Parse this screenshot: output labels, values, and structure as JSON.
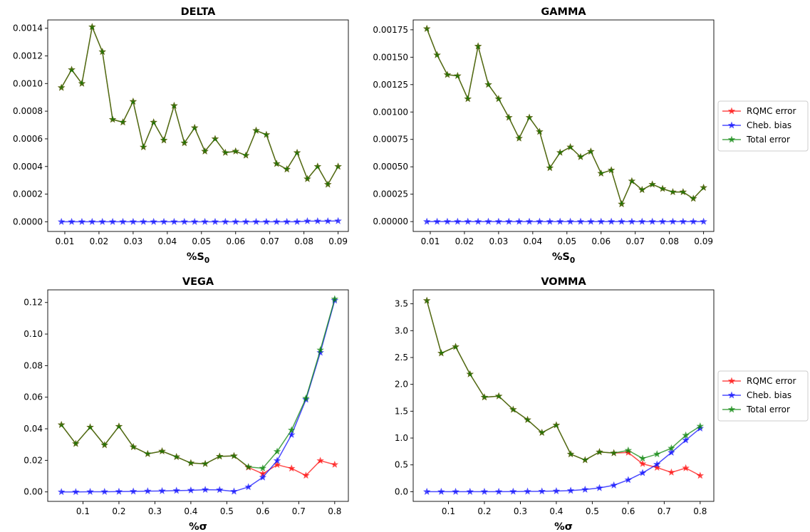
{
  "colors": {
    "rqmc": "#ff0000",
    "cheb": "#0000ff",
    "total": "#008000"
  },
  "legend_labels": [
    "RQMC error",
    "Cheb. bias",
    "Total error"
  ],
  "chart_data": [
    {
      "type": "line",
      "title": "DELTA",
      "xlabel": "%S",
      "xlabel_sub": "0",
      "xlim": [
        0.005,
        0.093
      ],
      "ylim": [
        -7e-05,
        0.00146
      ],
      "xticks": [
        0.01,
        0.02,
        0.03,
        0.04,
        0.05,
        0.06,
        0.07,
        0.08,
        0.09
      ],
      "xtick_labels": [
        "0.01",
        "0.02",
        "0.03",
        "0.04",
        "0.05",
        "0.06",
        "0.07",
        "0.08",
        "0.09"
      ],
      "yticks": [
        0,
        0.0002,
        0.0004,
        0.0006,
        0.0008,
        0.001,
        0.0012,
        0.0014
      ],
      "ytick_labels": [
        "0.0000",
        "0.0002",
        "0.0004",
        "0.0006",
        "0.0008",
        "0.0010",
        "0.0012",
        "0.0014"
      ],
      "legend": "none",
      "x": [
        0.009,
        0.012,
        0.015,
        0.018,
        0.021,
        0.024,
        0.027,
        0.03,
        0.033,
        0.036,
        0.039,
        0.042,
        0.045,
        0.048,
        0.051,
        0.054,
        0.057,
        0.06,
        0.063,
        0.066,
        0.069,
        0.072,
        0.075,
        0.078,
        0.081,
        0.084,
        0.087,
        0.09
      ],
      "series": [
        {
          "name": "RQMC error",
          "color_key": "rqmc",
          "values": [
            0.00097,
            0.0011,
            0.001,
            0.00141,
            0.00123,
            0.00074,
            0.00072,
            0.00087,
            0.00054,
            0.00072,
            0.00059,
            0.00084,
            0.00057,
            0.00068,
            0.00051,
            0.0006,
            0.0005,
            0.00051,
            0.00048,
            0.00066,
            0.00063,
            0.00042,
            0.00038,
            0.0005,
            0.00031,
            0.0004,
            0.00027,
            0.0004
          ]
        },
        {
          "name": "Cheb. bias",
          "color_key": "cheb",
          "values": [
            0,
            0,
            0,
            0,
            0,
            0,
            0,
            0,
            0,
            0,
            0,
            0,
            0,
            0,
            0,
            0,
            0,
            0,
            0,
            0,
            0,
            0,
            0,
            0,
            5e-06,
            5e-06,
            5e-06,
            6e-06
          ]
        },
        {
          "name": "Total error",
          "color_key": "total",
          "values": [
            0.00097,
            0.0011,
            0.001,
            0.00141,
            0.00123,
            0.00074,
            0.00072,
            0.00087,
            0.00054,
            0.00072,
            0.00059,
            0.00084,
            0.00057,
            0.00068,
            0.00051,
            0.0006,
            0.0005,
            0.00051,
            0.00048,
            0.00066,
            0.00063,
            0.00042,
            0.00038,
            0.0005,
            0.00031,
            0.0004,
            0.00027,
            0.0004
          ]
        }
      ]
    },
    {
      "type": "line",
      "title": "GAMMA",
      "xlabel": "%S",
      "xlabel_sub": "0",
      "xlim": [
        0.005,
        0.093
      ],
      "ylim": [
        -9e-05,
        0.00184
      ],
      "xticks": [
        0.01,
        0.02,
        0.03,
        0.04,
        0.05,
        0.06,
        0.07,
        0.08,
        0.09
      ],
      "xtick_labels": [
        "0.01",
        "0.02",
        "0.03",
        "0.04",
        "0.05",
        "0.06",
        "0.07",
        "0.08",
        "0.09"
      ],
      "yticks": [
        0,
        0.00025,
        0.0005,
        0.00075,
        0.001,
        0.00125,
        0.0015,
        0.00175
      ],
      "ytick_labels": [
        "0.00000",
        "0.00025",
        "0.00050",
        "0.00075",
        "0.00100",
        "0.00125",
        "0.00150",
        "0.00175"
      ],
      "legend": "right",
      "x": [
        0.009,
        0.012,
        0.015,
        0.018,
        0.021,
        0.024,
        0.027,
        0.03,
        0.033,
        0.036,
        0.039,
        0.042,
        0.045,
        0.048,
        0.051,
        0.054,
        0.057,
        0.06,
        0.063,
        0.066,
        0.069,
        0.072,
        0.075,
        0.078,
        0.081,
        0.084,
        0.087,
        0.09
      ],
      "series": [
        {
          "name": "RQMC error",
          "color_key": "rqmc",
          "values": [
            0.00176,
            0.00152,
            0.00134,
            0.00133,
            0.00112,
            0.0016,
            0.00125,
            0.00112,
            0.00095,
            0.00076,
            0.00095,
            0.00082,
            0.00049,
            0.00063,
            0.00068,
            0.00059,
            0.00064,
            0.00044,
            0.00047,
            0.00016,
            0.00037,
            0.00029,
            0.00034,
            0.0003,
            0.00027,
            0.00027,
            0.00021,
            0.00031
          ]
        },
        {
          "name": "Cheb. bias",
          "color_key": "cheb",
          "values": [
            0,
            0,
            0,
            0,
            0,
            0,
            0,
            0,
            0,
            0,
            0,
            0,
            0,
            0,
            0,
            0,
            0,
            0,
            0,
            0,
            0,
            0,
            0,
            0,
            0,
            0,
            0,
            0
          ]
        },
        {
          "name": "Total error",
          "color_key": "total",
          "values": [
            0.00176,
            0.00152,
            0.00134,
            0.00133,
            0.00112,
            0.0016,
            0.00125,
            0.00112,
            0.00095,
            0.00076,
            0.00095,
            0.00082,
            0.00049,
            0.00063,
            0.00068,
            0.00059,
            0.00064,
            0.00044,
            0.00047,
            0.00016,
            0.00037,
            0.00029,
            0.00034,
            0.0003,
            0.00027,
            0.00027,
            0.00021,
            0.00031
          ]
        }
      ]
    },
    {
      "type": "line",
      "title": "VEGA",
      "xlabel": "%σ",
      "xlabel_sub": "",
      "xlim": [
        0.002,
        0.838
      ],
      "ylim": [
        -0.006,
        0.128
      ],
      "xticks": [
        0.1,
        0.2,
        0.3,
        0.4,
        0.5,
        0.6,
        0.7,
        0.8
      ],
      "xtick_labels": [
        "0.1",
        "0.2",
        "0.3",
        "0.4",
        "0.5",
        "0.6",
        "0.7",
        "0.8"
      ],
      "yticks": [
        0,
        0.02,
        0.04,
        0.06,
        0.08,
        0.1,
        0.12
      ],
      "ytick_labels": [
        "0.00",
        "0.02",
        "0.04",
        "0.06",
        "0.08",
        "0.10",
        "0.12"
      ],
      "legend": "none",
      "x": [
        0.04,
        0.08,
        0.12,
        0.16,
        0.2,
        0.24,
        0.28,
        0.32,
        0.36,
        0.4,
        0.44,
        0.48,
        0.52,
        0.56,
        0.6,
        0.64,
        0.68,
        0.72,
        0.76,
        0.8
      ],
      "series": [
        {
          "name": "RQMC error",
          "color_key": "rqmc",
          "values": [
            0.0425,
            0.0305,
            0.041,
            0.0297,
            0.0415,
            0.0285,
            0.0241,
            0.0258,
            0.0222,
            0.0183,
            0.0178,
            0.0225,
            0.0228,
            0.0155,
            0.0115,
            0.0172,
            0.0149,
            0.0104,
            0.0198,
            0.0173
          ]
        },
        {
          "name": "Cheb. bias",
          "color_key": "cheb",
          "values": [
            0,
            0,
            0.0001,
            0.0001,
            0.0002,
            0.0003,
            0.0005,
            0.0006,
            0.0008,
            0.001,
            0.0014,
            0.0013,
            0.0003,
            0.0031,
            0.0092,
            0.0198,
            0.0362,
            0.0585,
            0.0883,
            0.1213
          ]
        },
        {
          "name": "Total error",
          "color_key": "total",
          "values": [
            0.0425,
            0.0305,
            0.041,
            0.0297,
            0.0415,
            0.0285,
            0.0241,
            0.0258,
            0.0222,
            0.0183,
            0.0178,
            0.0225,
            0.0228,
            0.0158,
            0.015,
            0.0256,
            0.0392,
            0.0593,
            0.0899,
            0.1222
          ]
        }
      ]
    },
    {
      "type": "line",
      "title": "VOMMA",
      "xlabel": "%σ",
      "xlabel_sub": "",
      "xlim": [
        0.002,
        0.838
      ],
      "ylim": [
        -0.18,
        3.76
      ],
      "xticks": [
        0.1,
        0.2,
        0.3,
        0.4,
        0.5,
        0.6,
        0.7,
        0.8
      ],
      "xtick_labels": [
        "0.1",
        "0.2",
        "0.3",
        "0.4",
        "0.5",
        "0.6",
        "0.7",
        "0.8"
      ],
      "yticks": [
        0,
        0.5,
        1.0,
        1.5,
        2.0,
        2.5,
        3.0,
        3.5
      ],
      "ytick_labels": [
        "0.0",
        "0.5",
        "1.0",
        "1.5",
        "2.0",
        "2.5",
        "3.0",
        "3.5"
      ],
      "legend": "right",
      "x": [
        0.04,
        0.08,
        0.12,
        0.16,
        0.2,
        0.24,
        0.28,
        0.32,
        0.36,
        0.4,
        0.44,
        0.48,
        0.52,
        0.56,
        0.6,
        0.64,
        0.68,
        0.72,
        0.76,
        0.8
      ],
      "series": [
        {
          "name": "RQMC error",
          "color_key": "rqmc",
          "values": [
            3.56,
            2.58,
            2.7,
            2.19,
            1.76,
            1.78,
            1.53,
            1.34,
            1.1,
            1.24,
            0.7,
            0.59,
            0.74,
            0.72,
            0.73,
            0.52,
            0.45,
            0.36,
            0.44,
            0.3
          ]
        },
        {
          "name": "Cheb. bias",
          "color_key": "cheb",
          "values": [
            0,
            0,
            0,
            0,
            0,
            0,
            0.003,
            0.005,
            0.008,
            0.012,
            0.02,
            0.04,
            0.07,
            0.12,
            0.22,
            0.35,
            0.51,
            0.73,
            0.96,
            1.18
          ]
        },
        {
          "name": "Total error",
          "color_key": "total",
          "values": [
            3.56,
            2.58,
            2.7,
            2.19,
            1.76,
            1.78,
            1.53,
            1.34,
            1.1,
            1.24,
            0.7,
            0.59,
            0.74,
            0.72,
            0.77,
            0.62,
            0.7,
            0.81,
            1.05,
            1.22
          ]
        }
      ]
    }
  ]
}
